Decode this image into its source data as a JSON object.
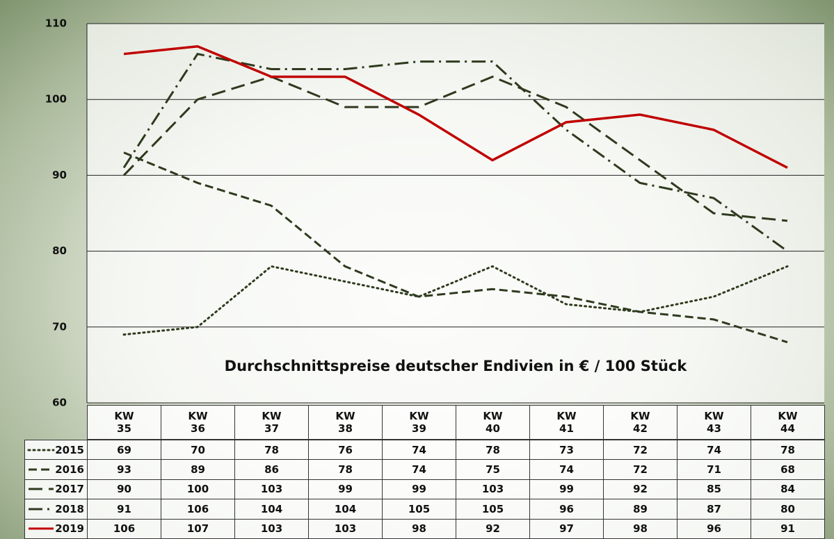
{
  "chart_data": {
    "type": "line",
    "title": "Durchschnittspreise deutscher Endivien in € / 100 Stück",
    "categories": [
      "KW 35",
      "KW 36",
      "KW 37",
      "KW 38",
      "KW 39",
      "KW 40",
      "KW 41",
      "KW 42",
      "KW 43",
      "KW 44"
    ],
    "ylim": [
      60,
      110
    ],
    "yticks": [
      60,
      70,
      80,
      90,
      100,
      110
    ],
    "grid": true,
    "series": [
      {
        "name": "2015",
        "color": "#2e3a1e",
        "style": "dotted",
        "values": [
          69,
          70,
          78,
          76,
          74,
          78,
          73,
          72,
          74,
          78
        ]
      },
      {
        "name": "2016",
        "color": "#2e3a1e",
        "style": "dashed",
        "values": [
          93,
          89,
          86,
          78,
          74,
          75,
          74,
          72,
          71,
          68
        ]
      },
      {
        "name": "2017",
        "color": "#2e3a1e",
        "style": "longdash",
        "values": [
          90,
          100,
          103,
          99,
          99,
          103,
          99,
          92,
          85,
          84
        ]
      },
      {
        "name": "2018",
        "color": "#2e3a1e",
        "style": "dashdot",
        "values": [
          91,
          106,
          104,
          104,
          105,
          105,
          96,
          89,
          87,
          80
        ]
      },
      {
        "name": "2019",
        "color": "#c00000",
        "style": "solid",
        "values": [
          106,
          107,
          103,
          103,
          98,
          92,
          97,
          98,
          96,
          91
        ]
      }
    ]
  }
}
